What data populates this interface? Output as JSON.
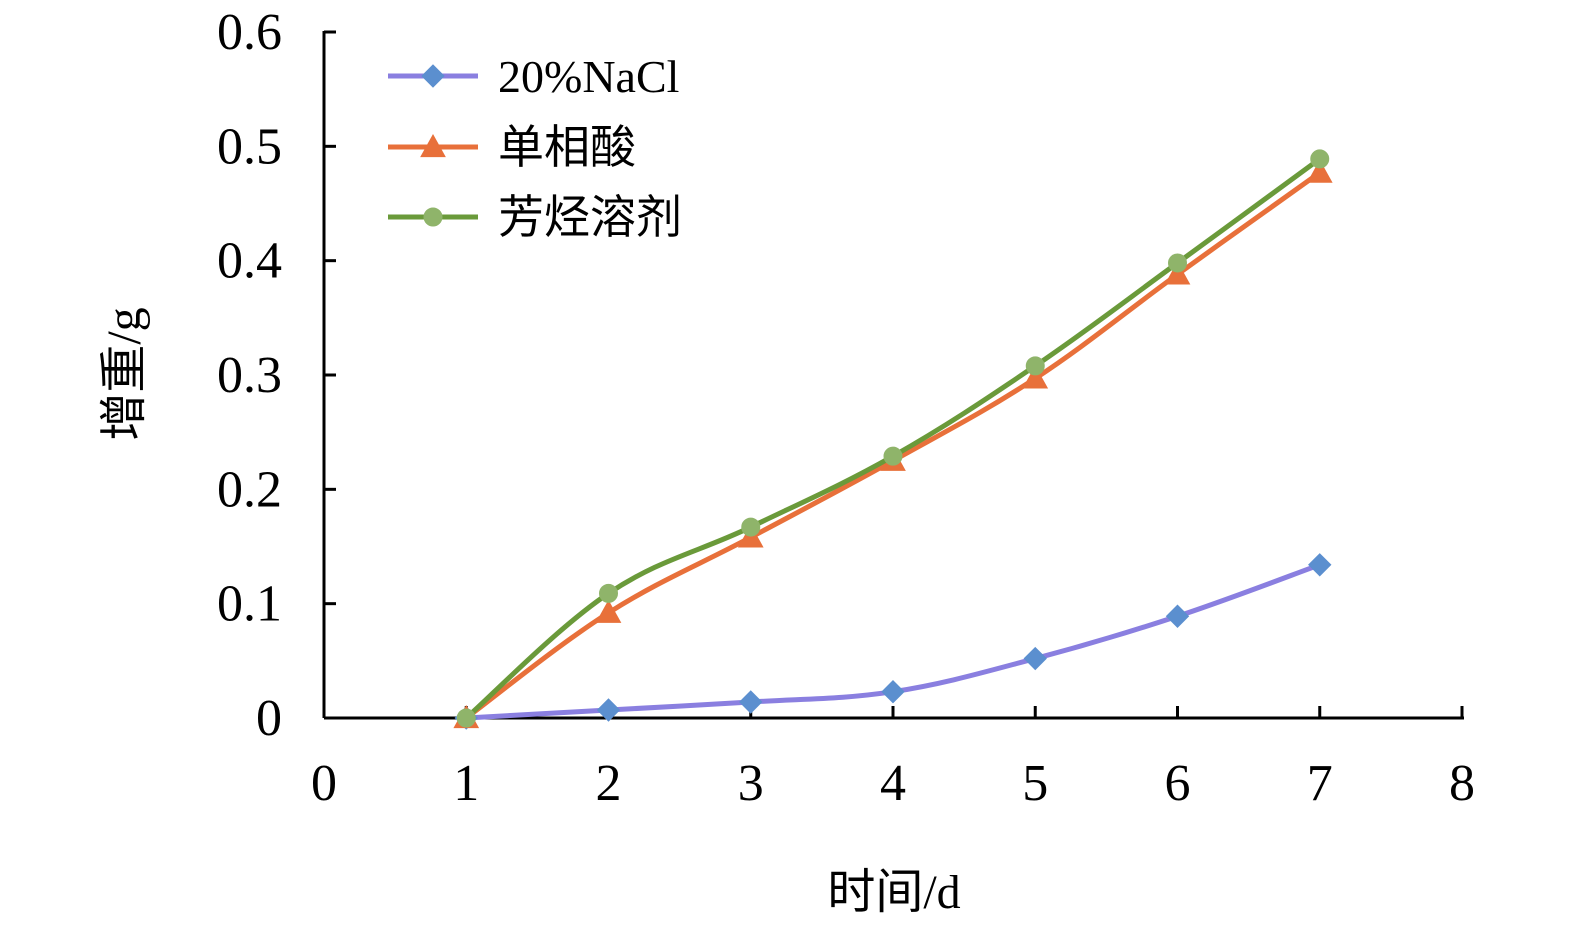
{
  "chart_data": {
    "type": "line",
    "xlabel": "时间/d",
    "ylabel": "增重/g",
    "xlim": [
      0,
      8
    ],
    "ylim": [
      0,
      0.6
    ],
    "x_ticks": [
      "0",
      "1",
      "2",
      "3",
      "4",
      "5",
      "6",
      "7",
      "8"
    ],
    "y_ticks": [
      "0",
      "0.1",
      "0.2",
      "0.3",
      "0.4",
      "0.5",
      "0.6"
    ],
    "grid": false,
    "legend_position": "top-left",
    "x": [
      1,
      2,
      3,
      4,
      5,
      6,
      7
    ],
    "series": [
      {
        "name": "20%NaCl",
        "marker": "diamond",
        "line_color": "#8a7fe0",
        "marker_color": "#5b8fcf",
        "values": [
          0,
          0.007,
          0.014,
          0.023,
          0.052,
          0.089,
          0.134
        ]
      },
      {
        "name": "单相酸",
        "marker": "triangle",
        "line_color": "#e8703a",
        "marker_color": "#e8703a",
        "values": [
          0,
          0.092,
          0.158,
          0.225,
          0.297,
          0.388,
          0.477
        ]
      },
      {
        "name": "芳烃溶剂",
        "marker": "circle",
        "line_color": "#6a9a3a",
        "marker_color": "#8fb46a",
        "values": [
          0,
          0.109,
          0.167,
          0.229,
          0.308,
          0.398,
          0.489
        ]
      }
    ]
  }
}
